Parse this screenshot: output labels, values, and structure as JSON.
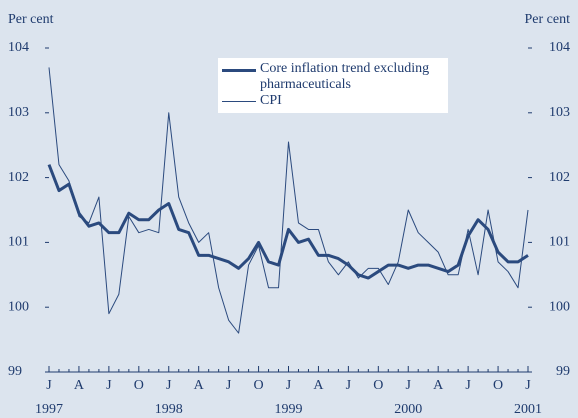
{
  "chart_data": {
    "type": "line",
    "y_label": "Per cent",
    "y2_label": "Per cent",
    "categories": [
      "J",
      null,
      null,
      "A",
      null,
      null,
      "J",
      null,
      null,
      "O",
      null,
      null,
      "J",
      null,
      null,
      "A",
      null,
      null,
      "J",
      null,
      null,
      "O",
      null,
      null,
      "J",
      null,
      null,
      "A",
      null,
      null,
      "J",
      null,
      null,
      "O",
      null,
      null,
      "J",
      null,
      null,
      "A",
      null,
      null,
      "J",
      null,
      null,
      "O",
      null,
      null,
      "J"
    ],
    "year_labels": [
      "1997",
      "1998",
      "1999",
      "2000",
      "2001"
    ],
    "series": [
      {
        "name": "Core inflation trend excluding pharmaceuticals",
        "color": "#2b4a7e",
        "width": 3,
        "values": [
          102.2,
          101.8,
          101.9,
          101.45,
          101.25,
          101.3,
          101.15,
          101.15,
          101.45,
          101.35,
          101.35,
          101.5,
          101.6,
          101.2,
          101.15,
          100.8,
          100.8,
          100.75,
          100.7,
          100.6,
          100.75,
          101.0,
          100.7,
          100.65,
          101.2,
          101.0,
          101.05,
          100.8,
          100.8,
          100.75,
          100.65,
          100.5,
          100.45,
          100.55,
          100.65,
          100.65,
          100.6,
          100.65,
          100.65,
          100.6,
          100.55,
          100.65,
          101.1,
          101.35,
          101.2,
          100.85,
          100.7,
          100.7,
          100.8
        ]
      },
      {
        "name": "CPI",
        "color": "#2b4a7e",
        "width": 1,
        "values": [
          103.7,
          102.2,
          101.95,
          101.4,
          101.3,
          101.7,
          99.9,
          100.2,
          101.4,
          101.15,
          101.2,
          101.15,
          103.0,
          101.7,
          101.3,
          101.0,
          101.15,
          100.3,
          99.8,
          99.6,
          100.65,
          100.95,
          100.3,
          100.3,
          102.55,
          101.3,
          101.2,
          101.2,
          100.7,
          100.5,
          100.7,
          100.45,
          100.6,
          100.6,
          100.35,
          100.7,
          101.5,
          101.15,
          101.0,
          100.85,
          100.5,
          100.5,
          101.2,
          100.5,
          101.5,
          100.7,
          100.55,
          100.3,
          101.5
        ]
      }
    ],
    "ylim": [
      99,
      104
    ],
    "yticks": [
      99,
      100,
      101,
      102,
      103,
      104
    ],
    "grid": false
  }
}
